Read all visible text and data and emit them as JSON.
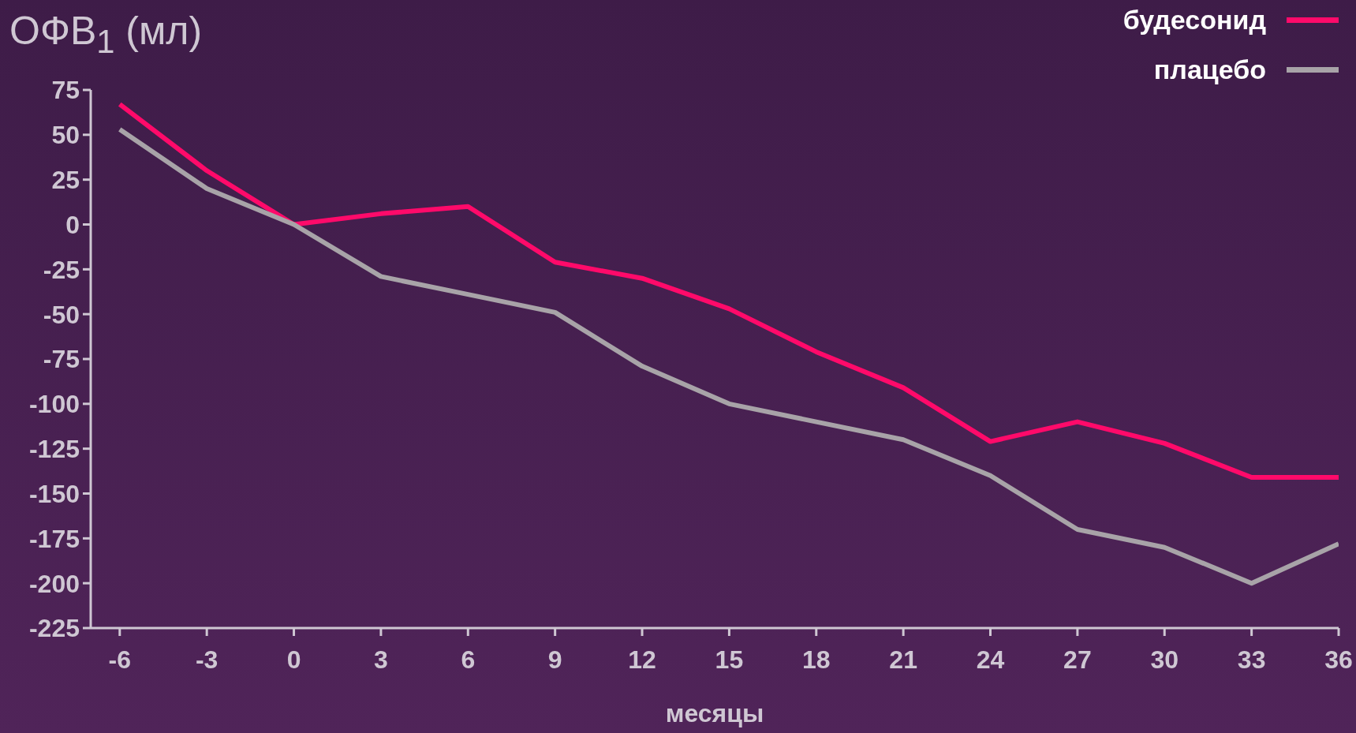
{
  "chart_data": {
    "type": "line",
    "title": "ОФВ$_{1}$ (мл)",
    "xlabel": "месяцы",
    "x": [
      -6,
      -3,
      0,
      3,
      6,
      9,
      12,
      15,
      18,
      21,
      24,
      27,
      30,
      33,
      36
    ],
    "xlim": [
      -7,
      36
    ],
    "xticks": [
      -6,
      -3,
      0,
      3,
      6,
      9,
      12,
      15,
      18,
      21,
      24,
      27,
      30,
      33,
      36
    ],
    "ylim": [
      -225,
      75
    ],
    "yticks": [
      -225,
      -200,
      -175,
      -150,
      -125,
      -100,
      -75,
      -50,
      -25,
      0,
      25,
      50,
      75
    ],
    "legend": "top right",
    "marker": "none",
    "series": [
      {
        "name": "будесонид",
        "color": "#ff0a6a",
        "values": [
          67,
          30,
          0,
          6,
          10,
          -21,
          -30,
          -47,
          -71,
          -91,
          -121,
          -110,
          -122,
          -141,
          -141
        ]
      },
      {
        "name": "плацебо",
        "color": "#a8a3a8",
        "values": [
          53,
          20,
          0,
          -29,
          -39,
          -49,
          -79,
          -100,
          -110,
          -120,
          -140,
          -170,
          -180,
          -200,
          -178
        ]
      }
    ]
  }
}
